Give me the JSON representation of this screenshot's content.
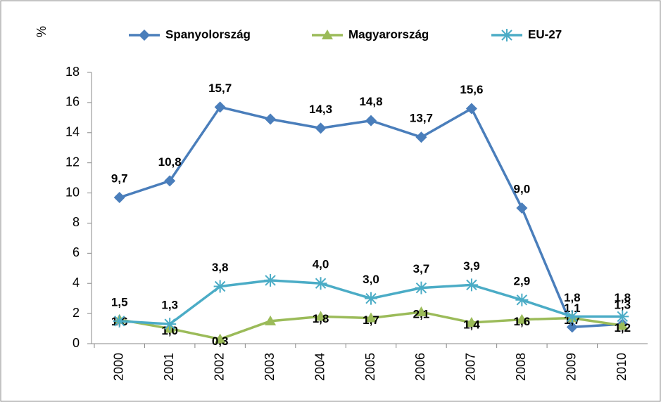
{
  "chart_data": {
    "type": "line",
    "y_label": "%",
    "categories": [
      "2000",
      "2001",
      "2002",
      "2003",
      "2004",
      "2005",
      "2006",
      "2007",
      "2008",
      "2009",
      "2010"
    ],
    "series": [
      {
        "name": "Spanyolország",
        "color": "#4a7ebb",
        "marker": "diamond",
        "values": [
          9.7,
          10.8,
          15.7,
          14.9,
          14.3,
          14.8,
          13.7,
          15.6,
          9.0,
          1.1,
          1.3
        ],
        "value_labels": [
          "9,7",
          "10,8",
          "15,7",
          null,
          "14,3",
          "14,8",
          "13,7",
          "15,6",
          "9,0",
          "1,1",
          "1,3"
        ]
      },
      {
        "name": "Magyarország",
        "color": "#9bbb59",
        "marker": "triangle",
        "values": [
          1.6,
          1.0,
          0.3,
          1.5,
          1.8,
          1.7,
          2.1,
          1.4,
          1.6,
          1.7,
          1.2
        ],
        "value_labels": [
          "1,6",
          "1,0",
          "0,3",
          null,
          "1,8",
          "1,7",
          "2,1",
          "1,4",
          "1,6",
          "1,7",
          "1,2"
        ]
      },
      {
        "name": "EU-27",
        "color": "#4bacc6",
        "marker": "star",
        "values": [
          1.5,
          1.3,
          3.8,
          4.2,
          4.0,
          3.0,
          3.7,
          3.9,
          2.9,
          1.8,
          1.8
        ],
        "value_labels": [
          "1,5",
          "1,3",
          "3,8",
          null,
          "4,0",
          "3,0",
          "3,7",
          "3,9",
          "2,9",
          "1,8",
          "1,8"
        ]
      }
    ],
    "ylim": [
      0,
      18
    ],
    "yticks": [
      0,
      2,
      4,
      6,
      8,
      10,
      12,
      14,
      16,
      18
    ],
    "grid": false,
    "legend": "top"
  }
}
